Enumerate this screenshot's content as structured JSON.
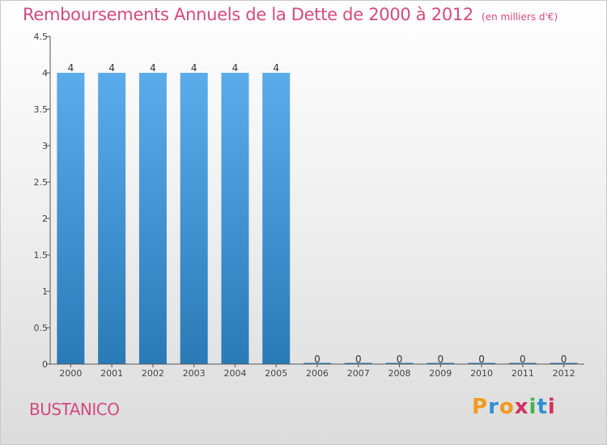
{
  "header": {
    "title": "Remboursements Annuels de la Dette de 2000 à 2012",
    "unit": "(en milliers d'€)"
  },
  "footer": {
    "place": "BUSTANICO",
    "brand": "Proxiti",
    "brand_letters": [
      "P",
      "r",
      "o",
      "x",
      "i",
      "t",
      "i"
    ],
    "brand_colors": [
      "#f39a1c",
      "#2f8fd4",
      "#f39a1c",
      "#d4305f",
      "#46b349",
      "#2f8fd4",
      "#d4305f"
    ]
  },
  "chart_data": {
    "type": "bar",
    "categories": [
      "2000",
      "2001",
      "2002",
      "2003",
      "2004",
      "2005",
      "2006",
      "2007",
      "2008",
      "2009",
      "2010",
      "2011",
      "2012"
    ],
    "values": [
      4,
      4,
      4,
      4,
      4,
      4,
      0,
      0,
      0,
      0,
      0,
      0,
      0
    ],
    "data_labels": [
      "4",
      "4",
      "4",
      "4",
      "4",
      "4",
      "0",
      "0",
      "0",
      "0",
      "0",
      "0",
      "0"
    ],
    "yticks": [
      0,
      0.5,
      1,
      1.5,
      2,
      2.5,
      3,
      3.5,
      4,
      4.5
    ],
    "ytick_labels": [
      "0",
      "0.5",
      "1",
      "1.5",
      "2",
      "2.5",
      "3",
      "3.5",
      "4",
      "4.5"
    ],
    "ylim": [
      0,
      4.5
    ],
    "xlabel": "",
    "ylabel": "",
    "colors": {
      "bar_top": "#5aacea",
      "bar_bottom": "#2a7ab8",
      "title": "#d44a7e",
      "axis": "#555555"
    }
  }
}
